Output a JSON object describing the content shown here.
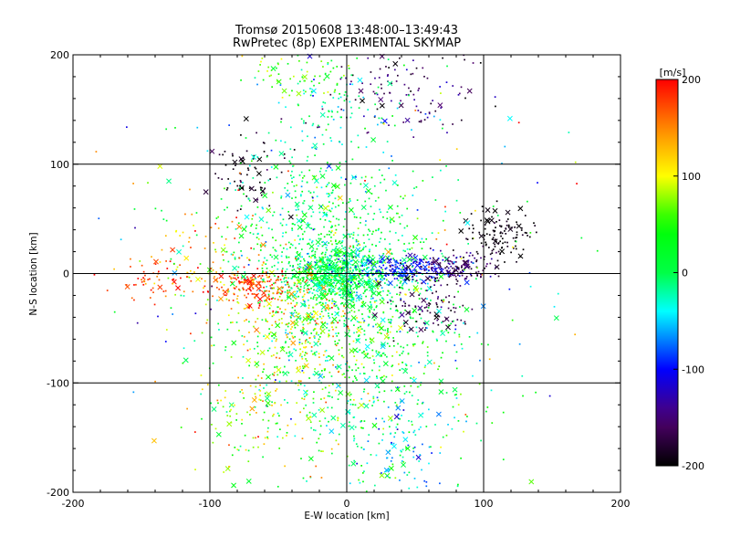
{
  "chart_data": {
    "type": "scatter",
    "title": "Tromsø 20150608 13:48:00–13:49:43",
    "subtitle": "RwPretec (8p) EXPERIMENTAL SKYMAP",
    "xlabel": "E-W location [km]",
    "ylabel": "N-S location [km]",
    "xlim": [
      -200,
      200
    ],
    "ylim": [
      -200,
      200
    ],
    "x_ticks": [
      "-200",
      "-100",
      "0",
      "100",
      "200"
    ],
    "y_ticks": [
      "-200",
      "-100",
      "0",
      "100",
      "200"
    ],
    "gridlines_at": [
      -100,
      0,
      100
    ],
    "marker_types": [
      "dot",
      "cross"
    ],
    "colorbar": {
      "label": "[m/s]",
      "range": [
        -200,
        200
      ],
      "ticks": [
        "-200",
        "-100",
        "0",
        "100",
        "200"
      ],
      "colormap": "black-purple-blue-cyan-green-yellow-red"
    },
    "clusters": [
      {
        "x": -5,
        "y": 0,
        "sx": 20,
        "sy": 14,
        "n": 700,
        "v": 0,
        "dv": 25
      },
      {
        "x": -10,
        "y": -20,
        "sx": 45,
        "sy": 45,
        "n": 600,
        "v": 20,
        "dv": 45
      },
      {
        "x": 10,
        "y": -90,
        "sx": 45,
        "sy": 55,
        "n": 500,
        "v": 10,
        "dv": 40
      },
      {
        "x": -70,
        "y": -12,
        "sx": 18,
        "sy": 10,
        "n": 170,
        "v": 175,
        "dv": 30
      },
      {
        "x": -30,
        "y": -40,
        "sx": 20,
        "sy": 22,
        "n": 170,
        "v": 115,
        "dv": 35
      },
      {
        "x": -60,
        "y": -120,
        "sx": 30,
        "sy": 40,
        "n": 150,
        "v": 100,
        "dv": 40
      },
      {
        "x": 45,
        "y": 5,
        "sx": 18,
        "sy": 6,
        "n": 220,
        "v": -100,
        "dv": 20
      },
      {
        "x": 80,
        "y": 5,
        "sx": 15,
        "sy": 8,
        "n": 130,
        "v": -160,
        "dv": 20
      },
      {
        "x": 112,
        "y": 35,
        "sx": 12,
        "sy": 12,
        "n": 120,
        "v": -195,
        "dv": 8
      },
      {
        "x": 60,
        "y": -30,
        "sx": 15,
        "sy": 12,
        "n": 90,
        "v": -170,
        "dv": 20
      },
      {
        "x": -75,
        "y": 85,
        "sx": 15,
        "sy": 20,
        "n": 70,
        "v": -190,
        "dv": 15
      },
      {
        "x": 40,
        "y": 165,
        "sx": 30,
        "sy": 20,
        "n": 120,
        "v": -160,
        "dv": 30
      },
      {
        "x": -35,
        "y": 185,
        "sx": 20,
        "sy": 12,
        "n": 70,
        "v": 60,
        "dv": 30
      },
      {
        "x": -10,
        "y": 140,
        "sx": 30,
        "sy": 35,
        "n": 140,
        "v": -20,
        "dv": 30
      },
      {
        "x": -20,
        "y": 60,
        "sx": 40,
        "sy": 25,
        "n": 250,
        "v": 0,
        "dv": 30
      },
      {
        "x": 40,
        "y": -160,
        "sx": 20,
        "sy": 25,
        "n": 90,
        "v": -50,
        "dv": 30
      },
      {
        "x": -145,
        "y": -5,
        "sx": 12,
        "sy": 12,
        "n": 50,
        "v": 180,
        "dv": 25
      },
      {
        "x": -100,
        "y": 10,
        "sx": 20,
        "sy": 20,
        "n": 80,
        "v": 130,
        "dv": 30
      },
      {
        "x": 0,
        "y": 0,
        "sx": 90,
        "sy": 90,
        "n": 220,
        "v": 20,
        "dv": 80
      }
    ]
  }
}
